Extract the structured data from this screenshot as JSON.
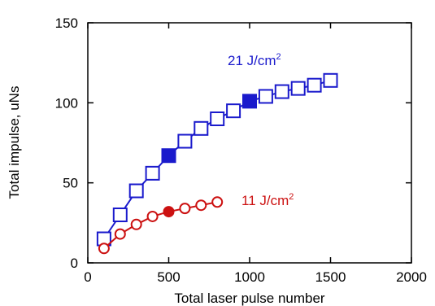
{
  "chart_data": {
    "type": "scatter",
    "title": "",
    "xlabel": "Total laser pulse number",
    "ylabel": "Total impulse, uNs",
    "xlim": [
      0,
      2000
    ],
    "ylim": [
      0,
      150
    ],
    "xticks": [
      0,
      500,
      1000,
      1500,
      2000
    ],
    "yticks": [
      0,
      50,
      100,
      150
    ],
    "grid": false,
    "series": [
      {
        "name": "21 J/cm",
        "label_superscript": "2",
        "color": "#1a1acc",
        "marker": "square",
        "line": true,
        "x": [
          100,
          200,
          300,
          400,
          500,
          600,
          700,
          800,
          900,
          1000,
          1100,
          1200,
          1300,
          1400,
          1500
        ],
        "y": [
          15,
          30,
          45,
          56,
          67,
          76,
          84,
          90,
          95,
          101,
          104,
          107,
          109,
          111,
          114
        ],
        "filled_x": [
          500,
          1000
        ]
      },
      {
        "name": "11 J/cm",
        "label_superscript": "2",
        "color": "#cc1111",
        "marker": "circle",
        "line": true,
        "x": [
          100,
          200,
          300,
          400,
          500,
          600,
          700,
          800
        ],
        "y": [
          9,
          18,
          24,
          29,
          32,
          34,
          36,
          38
        ],
        "filled_x": [
          500
        ]
      }
    ]
  }
}
